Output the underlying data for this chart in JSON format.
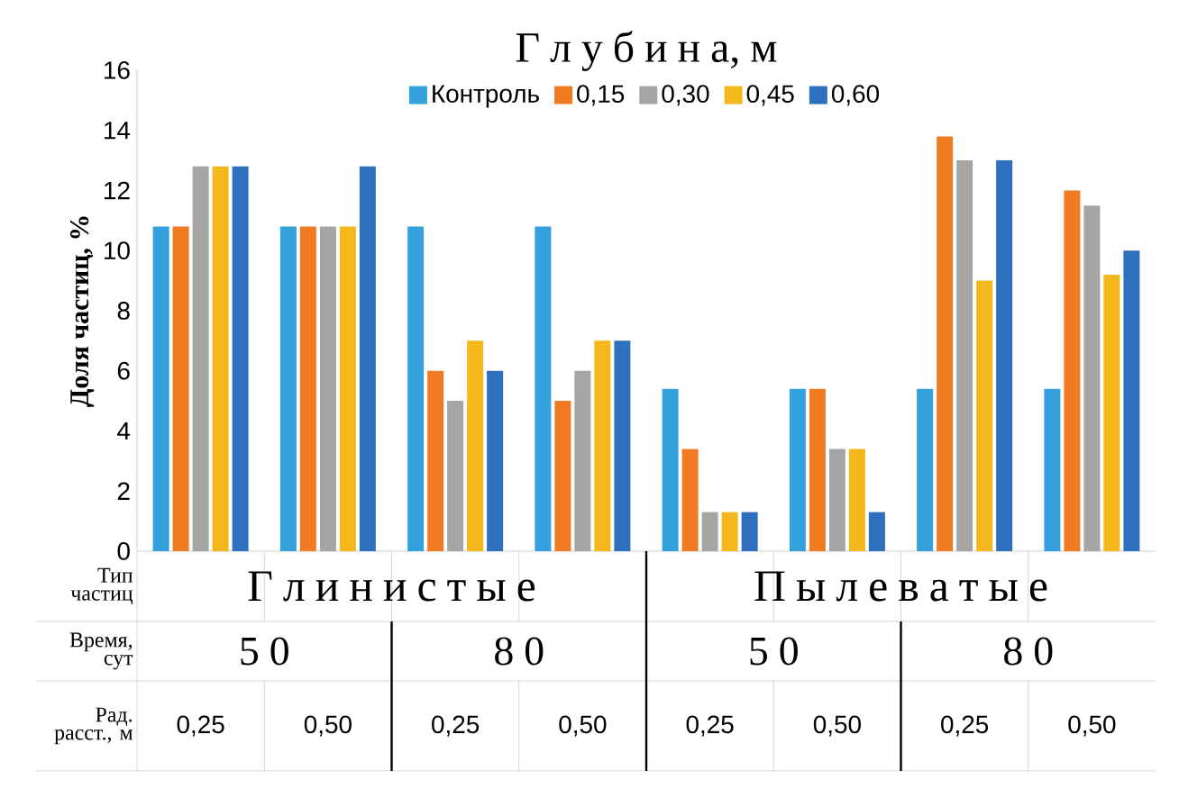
{
  "chart_data": {
    "type": "bar",
    "ylabel": "Доля частиц, %",
    "legend_title": "Г л у б и н а, м",
    "legend": "top",
    "categories": [
      "0,25",
      "0,50",
      "0,25",
      "0,50",
      "0,25",
      "0,50",
      "0,25",
      "0,50"
    ],
    "annotations": [
      "Тип частиц",
      "Г л и н и с т ы е",
      "П ы л е в а т ы е",
      "Время, сут",
      "5 0",
      "8 0",
      "5 0",
      "8 0",
      "Рад. расст., м"
    ],
    "ylim": [
      0,
      16
    ],
    "yticks": [
      0,
      2,
      4,
      6,
      8,
      10,
      12,
      14,
      16
    ],
    "series": [
      {
        "name": "Контроль",
        "color": "#34a0dc",
        "values": [
          10.8,
          10.8,
          10.8,
          10.8,
          5.4,
          5.4,
          5.4,
          5.4
        ]
      },
      {
        "name": "0,15",
        "color": "#f07b23",
        "values": [
          10.8,
          10.8,
          6,
          5,
          3.4,
          5.4,
          13.8,
          12
        ]
      },
      {
        "name": "0,30",
        "color": "#a5a5a5",
        "values": [
          12.8,
          10.8,
          5,
          6,
          1.3,
          3.4,
          13,
          11.5
        ]
      },
      {
        "name": "0,45",
        "color": "#f5b81c",
        "values": [
          12.8,
          10.8,
          7,
          7,
          1.3,
          3.4,
          9,
          9.2
        ]
      },
      {
        "name": "0,60",
        "color": "#2e6fbe",
        "values": [
          12.8,
          12.8,
          6,
          7,
          1.3,
          1.3,
          13,
          10
        ]
      }
    ]
  }
}
